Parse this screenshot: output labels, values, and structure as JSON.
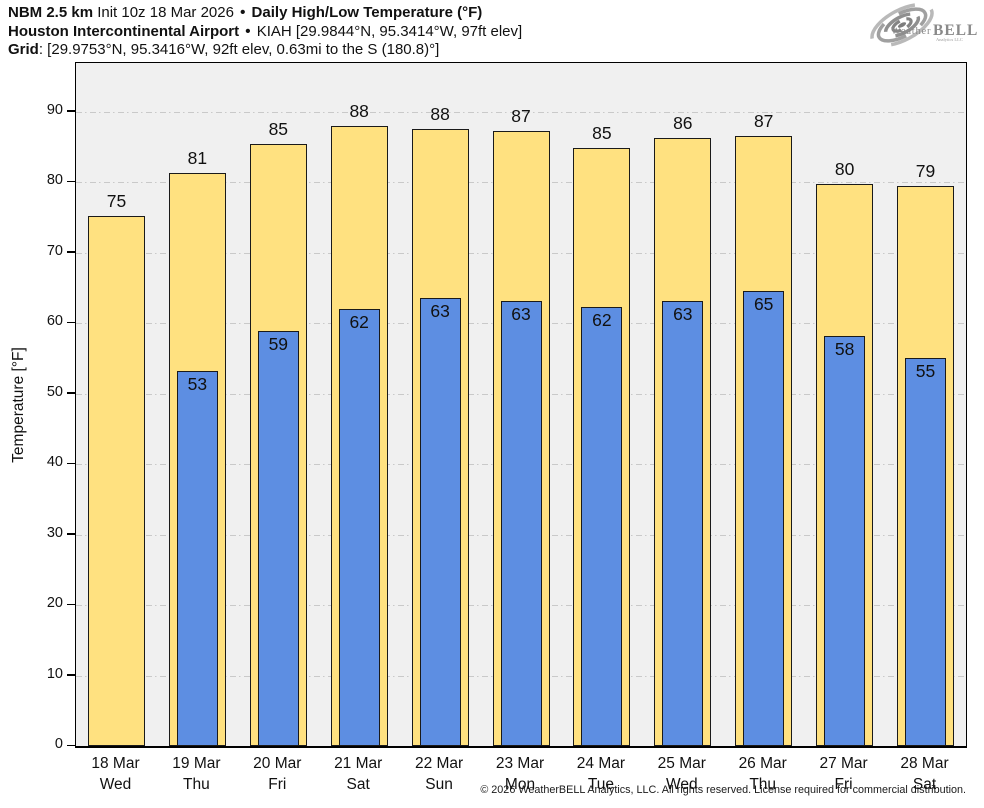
{
  "header": {
    "line1": {
      "model_bold": "NBM 2.5 km",
      "init": " Init 10z 18 Mar 2026 ",
      "sep": "•",
      "product_bold": " Daily High/Low Temperature (°F)"
    },
    "line2": {
      "station_bold": "Houston Intercontinental Airport",
      "sep": " • ",
      "station_info": "KIAH [29.9844°N, 95.3414°W, 97ft elev]"
    },
    "line3": {
      "grid_bold": "Grid",
      "grid_info": ": [29.9753°N, 95.3416°W, 92ft elev, 0.63mi to the S (180.8)°]"
    }
  },
  "logo": {
    "name": "weatherbell-logo",
    "brand_left": "Weather",
    "brand_right": "BELL",
    "sub": "Analytics LLC"
  },
  "chart_data": {
    "type": "bar",
    "title": "NBM 2.5 km Daily High/Low Temperature (°F) — Houston Intercontinental Airport (KIAH)",
    "ylabel": "Temperature [°F]",
    "ylim": [
      0,
      96.9
    ],
    "yticks": [
      0,
      10,
      20,
      30,
      40,
      50,
      60,
      70,
      80,
      90
    ],
    "grid": "horizontal dash-dot",
    "legend": "none",
    "categories": [
      {
        "date": "18 Mar",
        "day": "Wed"
      },
      {
        "date": "19 Mar",
        "day": "Thu"
      },
      {
        "date": "20 Mar",
        "day": "Fri"
      },
      {
        "date": "21 Mar",
        "day": "Sat"
      },
      {
        "date": "22 Mar",
        "day": "Sun"
      },
      {
        "date": "23 Mar",
        "day": "Mon"
      },
      {
        "date": "24 Mar",
        "day": "Tue"
      },
      {
        "date": "25 Mar",
        "day": "Wed"
      },
      {
        "date": "26 Mar",
        "day": "Thu"
      },
      {
        "date": "27 Mar",
        "day": "Fri"
      },
      {
        "date": "28 Mar",
        "day": "Sat"
      }
    ],
    "series": [
      {
        "name": "High",
        "color": "#ffe180",
        "values": [
          75,
          81,
          85,
          88,
          88,
          87,
          85,
          86,
          87,
          80,
          79
        ],
        "values_exact": [
          75.2,
          81.3,
          85.4,
          87.9,
          87.6,
          87.3,
          84.9,
          86.3,
          86.6,
          79.7,
          79.4
        ]
      },
      {
        "name": "Low",
        "color": "#5d8ee2",
        "values": [
          null,
          53,
          59,
          62,
          63,
          63,
          62,
          63,
          65,
          58,
          55
        ],
        "values_exact": [
          null,
          53.2,
          58.9,
          62.0,
          63.5,
          63.2,
          62.3,
          63.1,
          64.6,
          58.2,
          55.1
        ]
      }
    ]
  },
  "colors": {
    "plot_bg": "#f0f0f0",
    "grid": "#c9c9c9",
    "bar_outline": "#1a1a1a",
    "high_fill": "#ffe180",
    "low_fill": "#5d8ee2",
    "logo_gray": "#8f8f8f"
  },
  "footer": {
    "copyright": "© 2026 WeatherBELL Analytics, LLC. All rights reserved. License required for commercial distribution."
  }
}
